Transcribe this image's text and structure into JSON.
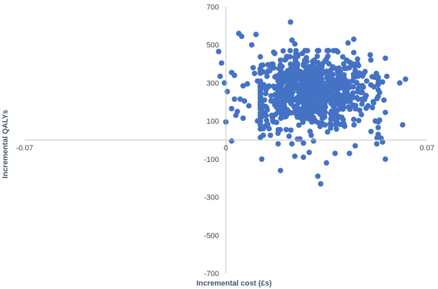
{
  "chart_data": {
    "type": "scatter",
    "title": "",
    "xlabel": "Incremental cost (£s)",
    "ylabel": "Incremental QALYs",
    "xlim": [
      -0.07,
      0.07
    ],
    "ylim": [
      -700,
      700
    ],
    "x_tick_labels": [
      "-0.07",
      "0",
      "0.07"
    ],
    "y_tick_labels": [
      "700",
      "500",
      "300",
      "100",
      "-100",
      "-300",
      "-500",
      "-700"
    ],
    "grid": false,
    "legend": "none",
    "point_color": "#4472c4",
    "series": [
      {
        "points": [
          [
            -0.002,
            335
          ],
          [
            -0.0025,
            465
          ],
          [
            -0.0015,
            405
          ],
          [
            -0.0005,
            300
          ],
          [
            0.0005,
            255
          ],
          [
            0.002,
            355
          ],
          [
            0.003,
            340
          ],
          [
            0.0045,
            560
          ],
          [
            0.0055,
            545
          ],
          [
            0.006,
            285
          ],
          [
            0.003,
            215
          ],
          [
            0.004,
            150
          ],
          [
            0.002,
            165
          ],
          [
            0.0035,
            130
          ],
          [
            0.0,
            95
          ],
          [
            0.002,
            -5
          ],
          [
            0.006,
            115
          ],
          [
            0.005,
            215
          ],
          [
            0.0065,
            205
          ],
          [
            0.008,
            180
          ],
          [
            0.0075,
            295
          ],
          [
            0.0105,
            555
          ],
          [
            0.009,
            500
          ],
          [
            0.0095,
            380
          ],
          [
            0.01,
            350
          ],
          [
            0.011,
            310
          ],
          [
            0.012,
            245
          ],
          [
            0.012,
            185
          ],
          [
            0.012,
            130
          ],
          [
            0.011,
            100
          ],
          [
            0.013,
            60
          ],
          [
            0.013,
            25
          ],
          [
            0.0125,
            -100
          ],
          [
            0.0155,
            25
          ],
          [
            0.014,
            265
          ],
          [
            0.016,
            390
          ],
          [
            0.019,
            -160
          ],
          [
            0.017,
            455
          ],
          [
            0.019,
            420
          ],
          [
            0.0185,
            375
          ],
          [
            0.0225,
            620
          ],
          [
            0.023,
            525
          ],
          [
            0.024,
            505
          ],
          [
            0.0275,
            470
          ],
          [
            0.025,
            440
          ],
          [
            0.0245,
            400
          ],
          [
            0.026,
            360
          ],
          [
            0.021,
            55
          ],
          [
            0.022,
            20
          ],
          [
            0.024,
            -85
          ],
          [
            0.027,
            -90
          ],
          [
            0.029,
            -65
          ],
          [
            0.0305,
            -5
          ],
          [
            0.033,
            -230
          ],
          [
            0.032,
            -190
          ],
          [
            0.035,
            -120
          ],
          [
            0.038,
            -70
          ],
          [
            0.043,
            -70
          ],
          [
            0.041,
            400
          ],
          [
            0.042,
            420
          ],
          [
            0.043,
            410
          ],
          [
            0.0445,
            460
          ],
          [
            0.0445,
            530
          ],
          [
            0.0425,
            510
          ],
          [
            0.04,
            340
          ],
          [
            0.045,
            365
          ],
          [
            0.048,
            350
          ],
          [
            0.049,
            310
          ],
          [
            0.0465,
            285
          ],
          [
            0.0475,
            250
          ],
          [
            0.046,
            215
          ],
          [
            0.0495,
            180
          ],
          [
            0.051,
            170
          ],
          [
            0.052,
            100
          ],
          [
            0.0505,
            45
          ],
          [
            0.045,
            -30
          ],
          [
            0.0525,
            -20
          ],
          [
            0.053,
            30
          ],
          [
            0.054,
            10
          ],
          [
            0.0545,
            -10
          ],
          [
            0.0555,
            -100
          ],
          [
            0.0555,
            430
          ],
          [
            0.056,
            335
          ],
          [
            0.0545,
            305
          ],
          [
            0.0515,
            280
          ],
          [
            0.0535,
            250
          ],
          [
            0.055,
            210
          ],
          [
            0.0555,
            145
          ],
          [
            0.0535,
            105
          ],
          [
            0.0605,
            300
          ],
          [
            0.0625,
            320
          ],
          [
            0.0615,
            80
          ]
        ],
        "cluster": {
          "n": 800,
          "x_mean": 0.029,
          "x_sd": 0.0105,
          "y_mean": 255,
          "y_sd": 95,
          "x_range": [
            0.012,
            0.053
          ],
          "y_range": [
            -20,
            470
          ]
        }
      }
    ]
  }
}
